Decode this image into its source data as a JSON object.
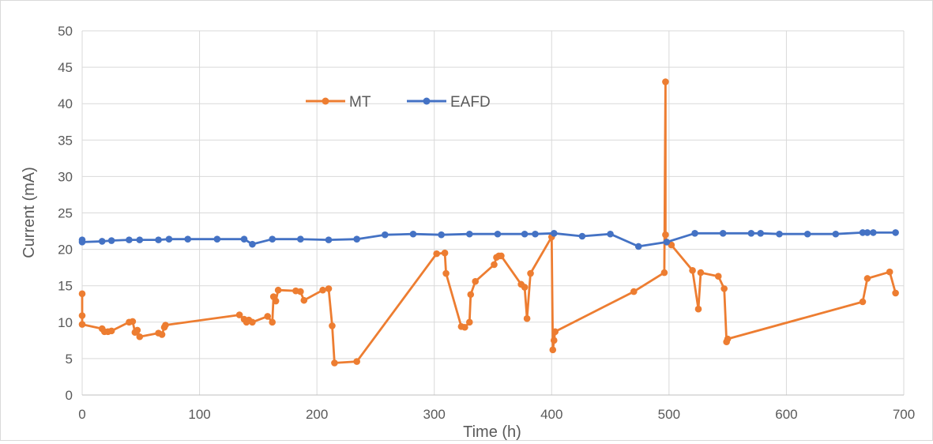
{
  "chart_data": {
    "type": "line",
    "title": "",
    "xlabel": "Time (h)",
    "ylabel": "Current (mA)",
    "xlim": [
      0,
      700
    ],
    "ylim": [
      0,
      50
    ],
    "x_ticks": [
      0,
      100,
      200,
      300,
      400,
      500,
      600,
      700
    ],
    "y_ticks": [
      0,
      5,
      10,
      15,
      20,
      25,
      30,
      35,
      40,
      45,
      50
    ],
    "grid": true,
    "legend_position": "top-center",
    "series": [
      {
        "name": "MT",
        "color": "#ED7D31",
        "x": [
          0,
          0,
          0,
          17,
          19,
          22,
          25,
          40,
          43,
          45,
          47,
          49,
          65,
          68,
          70,
          71,
          134,
          138,
          140,
          142,
          145,
          158,
          162,
          163,
          165,
          167,
          182,
          186,
          189,
          205,
          210,
          213,
          215,
          234,
          302,
          309,
          310,
          323,
          326,
          330,
          331,
          335,
          351,
          353,
          355,
          357,
          374,
          377,
          379,
          382,
          400,
          401,
          402,
          403,
          470,
          496,
          497,
          497,
          498,
          502,
          520,
          525,
          527,
          542,
          547,
          549,
          550,
          665,
          669,
          688,
          693
        ],
        "y": [
          13.9,
          10.9,
          9.7,
          9.1,
          8.7,
          8.7,
          8.8,
          10.0,
          10.1,
          8.6,
          8.9,
          8.0,
          8.5,
          8.3,
          9.3,
          9.6,
          11.0,
          10.4,
          10.0,
          10.3,
          10.0,
          10.8,
          10.0,
          13.5,
          12.9,
          14.4,
          14.3,
          14.2,
          13.0,
          14.4,
          14.6,
          9.5,
          4.4,
          4.6,
          19.4,
          19.5,
          16.7,
          9.4,
          9.3,
          10.0,
          13.8,
          15.6,
          17.9,
          18.9,
          19.1,
          19.1,
          15.2,
          14.8,
          10.5,
          16.7,
          21.7,
          6.2,
          7.5,
          8.7,
          14.2,
          16.8,
          43.0,
          22.0,
          21.0,
          20.6,
          17.1,
          11.8,
          16.8,
          16.3,
          14.6,
          7.3,
          7.7,
          12.8,
          16.0,
          16.9,
          14.0
        ]
      },
      {
        "name": "EAFD",
        "color": "#4472C4",
        "x": [
          0,
          0,
          17,
          25,
          40,
          49,
          65,
          74,
          90,
          115,
          138,
          145,
          162,
          186,
          210,
          234,
          258,
          282,
          306,
          330,
          354,
          377,
          386,
          402,
          426,
          450,
          474,
          498,
          522,
          546,
          570,
          578,
          594,
          618,
          642,
          665,
          669,
          674,
          693
        ],
        "y": [
          21.3,
          21.0,
          21.1,
          21.2,
          21.3,
          21.3,
          21.3,
          21.4,
          21.4,
          21.4,
          21.4,
          20.7,
          21.4,
          21.4,
          21.3,
          21.4,
          22.0,
          22.1,
          22.0,
          22.1,
          22.1,
          22.1,
          22.1,
          22.2,
          21.8,
          22.1,
          20.4,
          21.0,
          22.2,
          22.2,
          22.2,
          22.2,
          22.1,
          22.1,
          22.1,
          22.3,
          22.3,
          22.3,
          22.3
        ]
      }
    ]
  }
}
